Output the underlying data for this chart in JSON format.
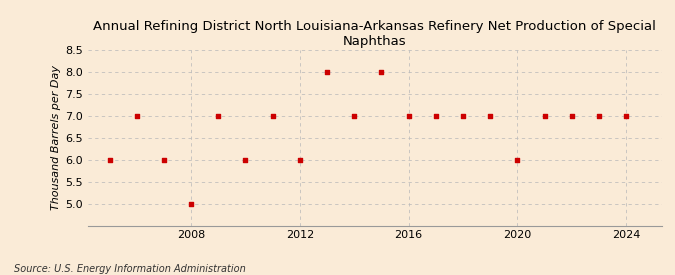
{
  "title": "Annual Refining District North Louisiana-Arkansas Refinery Net Production of Special Naphthas",
  "ylabel": "Thousand Barrels per Day",
  "source": "Source: U.S. Energy Information Administration",
  "background_color": "#faebd7",
  "marker_color": "#cc0000",
  "grid_color": "#bbbbbb",
  "years": [
    2005,
    2006,
    2007,
    2008,
    2009,
    2010,
    2011,
    2012,
    2013,
    2014,
    2015,
    2016,
    2017,
    2018,
    2019,
    2020,
    2021,
    2022,
    2023,
    2024
  ],
  "values": [
    6.0,
    7.0,
    6.0,
    5.0,
    7.0,
    6.0,
    7.0,
    6.0,
    8.0,
    7.0,
    8.0,
    7.0,
    7.0,
    7.0,
    7.0,
    6.0,
    7.0,
    7.0,
    7.0,
    7.0
  ],
  "ylim": [
    4.5,
    8.5
  ],
  "yticks": [
    5.0,
    5.5,
    6.0,
    6.5,
    7.0,
    7.5,
    8.0,
    8.5
  ],
  "xlim": [
    2004.2,
    2025.3
  ],
  "xticks": [
    2008,
    2012,
    2016,
    2020,
    2024
  ],
  "title_fontsize": 9.5,
  "axis_fontsize": 8,
  "tick_fontsize": 8,
  "source_fontsize": 7
}
